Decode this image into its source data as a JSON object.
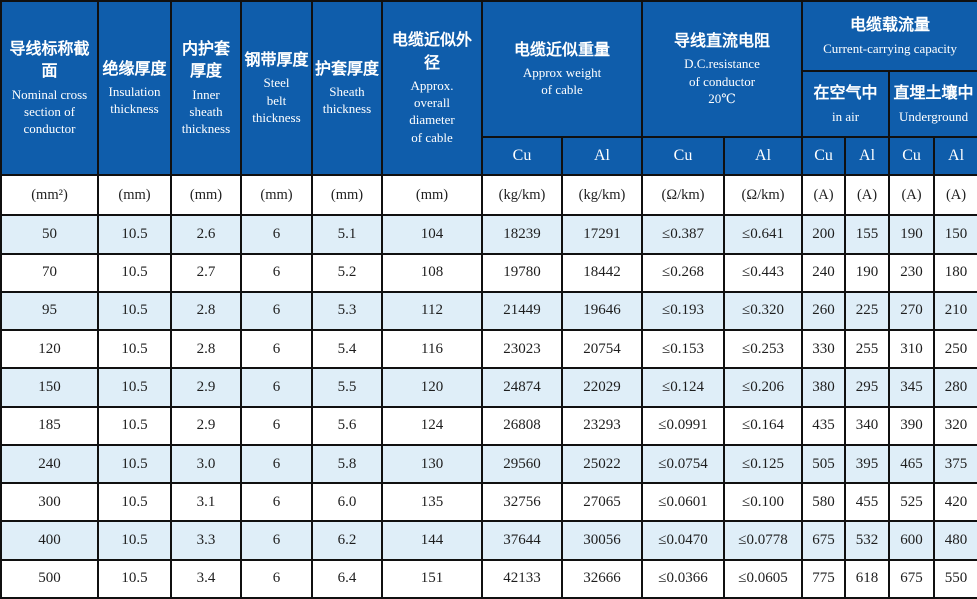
{
  "table": {
    "colors": {
      "header_bg": "#0f5dab",
      "header_text": "#ffffff",
      "row_alt_bg": "#dfeef8",
      "border": "#101010",
      "text": "#1e1e1e"
    },
    "columns": [
      {
        "zh": "导线标称截面",
        "en": "Nominal cross\nsection of\nconductor"
      },
      {
        "zh": "绝缘厚度",
        "en": "Insulation\nthickness"
      },
      {
        "zh": "内护套\n厚度",
        "en": "Inner\nsheath\nthickness"
      },
      {
        "zh": "钢带厚度",
        "en": "Steel\nbelt\nthickness"
      },
      {
        "zh": "护套厚度",
        "en": "Sheath\nthickness"
      },
      {
        "zh": "电缆近似外径",
        "en": "Approx.\noverall\ndiameter\nof cable"
      }
    ],
    "groups": {
      "weight": {
        "zh": "电缆近似重量",
        "en": "Approx weight\nof cable"
      },
      "resistance": {
        "zh": "导线直流电阻",
        "en": "D.C.resistance\nof conductor\n20℃"
      },
      "capacity": {
        "zh": "电缆载流量",
        "en": "Current-carrying capacity"
      },
      "in_air": {
        "zh": "在空气中",
        "en": "in air"
      },
      "underground": {
        "zh": "直埋土壤中",
        "en": "Underground"
      }
    },
    "material_headers": [
      "Cu",
      "Al",
      "Cu",
      "Al",
      "Cu",
      "Al",
      "Cu",
      "Al"
    ],
    "units": [
      "(mm²)",
      "(mm)",
      "(mm)",
      "(mm)",
      "(mm)",
      "(mm)",
      "(kg/km)",
      "(kg/km)",
      "(Ω/km)",
      "(Ω/km)",
      "(A)",
      "(A)",
      "(A)",
      "(A)"
    ],
    "rows": [
      [
        "50",
        "10.5",
        "2.6",
        "6",
        "5.1",
        "104",
        "18239",
        "17291",
        "≤0.387",
        "≤0.641",
        "200",
        "155",
        "190",
        "150"
      ],
      [
        "70",
        "10.5",
        "2.7",
        "6",
        "5.2",
        "108",
        "19780",
        "18442",
        "≤0.268",
        "≤0.443",
        "240",
        "190",
        "230",
        "180"
      ],
      [
        "95",
        "10.5",
        "2.8",
        "6",
        "5.3",
        "112",
        "21449",
        "19646",
        "≤0.193",
        "≤0.320",
        "260",
        "225",
        "270",
        "210"
      ],
      [
        "120",
        "10.5",
        "2.8",
        "6",
        "5.4",
        "116",
        "23023",
        "20754",
        "≤0.153",
        "≤0.253",
        "330",
        "255",
        "310",
        "250"
      ],
      [
        "150",
        "10.5",
        "2.9",
        "6",
        "5.5",
        "120",
        "24874",
        "22029",
        "≤0.124",
        "≤0.206",
        "380",
        "295",
        "345",
        "280"
      ],
      [
        "185",
        "10.5",
        "2.9",
        "6",
        "5.6",
        "124",
        "26808",
        "23293",
        "≤0.0991",
        "≤0.164",
        "435",
        "340",
        "390",
        "320"
      ],
      [
        "240",
        "10.5",
        "3.0",
        "6",
        "5.8",
        "130",
        "29560",
        "25022",
        "≤0.0754",
        "≤0.125",
        "505",
        "395",
        "465",
        "375"
      ],
      [
        "300",
        "10.5",
        "3.1",
        "6",
        "6.0",
        "135",
        "32756",
        "27065",
        "≤0.0601",
        "≤0.100",
        "580",
        "455",
        "525",
        "420"
      ],
      [
        "400",
        "10.5",
        "3.3",
        "6",
        "6.2",
        "144",
        "37644",
        "30056",
        "≤0.0470",
        "≤0.0778",
        "675",
        "532",
        "600",
        "480"
      ],
      [
        "500",
        "10.5",
        "3.4",
        "6",
        "6.4",
        "151",
        "42133",
        "32666",
        "≤0.0366",
        "≤0.0605",
        "775",
        "618",
        "675",
        "550"
      ]
    ]
  }
}
